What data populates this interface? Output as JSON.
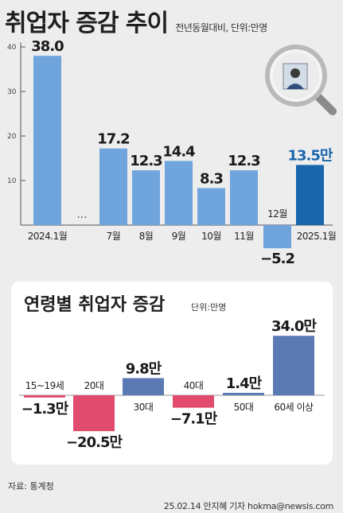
{
  "header": {
    "title": "취업자 증감 추이",
    "subtitle": "전년동월대비, 단위:만명"
  },
  "chart_data": [
    {
      "type": "bar",
      "title": "취업자 증감 추이",
      "subtitle": "전년동월대비, 단위:만명",
      "categories": [
        "2024.1월",
        "7월",
        "8월",
        "9월",
        "10월",
        "11월",
        "12월",
        "2025.1월"
      ],
      "values": [
        38.0,
        17.2,
        12.3,
        14.4,
        8.3,
        12.3,
        -5.2,
        13.5
      ],
      "value_labels": [
        "38.0",
        "17.2",
        "12.3",
        "14.4",
        "8.3",
        "12.3",
        "−5.2",
        "13.5만"
      ],
      "gap_marker": "···",
      "yticks": [
        "10",
        "20",
        "30",
        "40"
      ],
      "ylim": [
        -6,
        41
      ],
      "colors": {
        "bar": "#6fa5dc",
        "highlight": "#1a66ad",
        "highlight_label": "#1a66ad"
      }
    },
    {
      "type": "bar",
      "title": "연령별 취업자 증감",
      "subtitle": "단위:만명",
      "categories": [
        "15~19세",
        "20대",
        "30대",
        "40대",
        "50대",
        "60세 이상"
      ],
      "values": [
        -1.3,
        -20.5,
        9.8,
        -7.1,
        1.4,
        34.0
      ],
      "value_labels": [
        "−1.3만",
        "−20.5만",
        "9.8만",
        "−7.1만",
        "1.4만",
        "34.0만"
      ],
      "colors": {
        "positive": "#5b79b2",
        "negative": "#e14b6e"
      }
    }
  ],
  "footer": {
    "source": "자료: 통계청",
    "credit": "25.02.14 안지혜 기자 hokma@newsis.com"
  },
  "icons": {
    "decoration": "magnifier-with-photo-icon"
  }
}
